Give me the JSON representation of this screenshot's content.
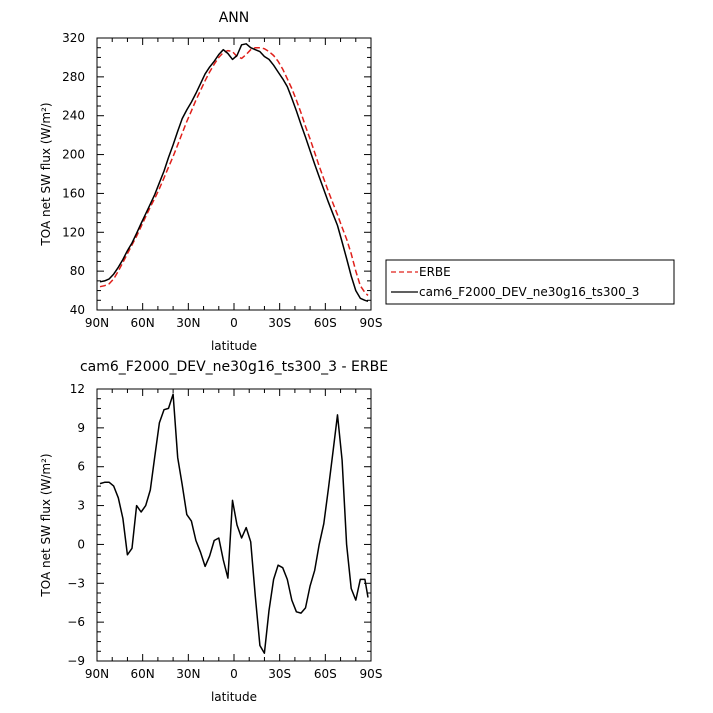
{
  "chart_data": [
    {
      "type": "line",
      "title": "ANN",
      "xlabel": "latitude",
      "ylabel": "TOA net SW flux (W/m²)",
      "xlim": [
        90,
        -90
      ],
      "ylim": [
        40,
        320
      ],
      "x_tick_values": [
        90,
        60,
        30,
        0,
        -30,
        -60,
        -90
      ],
      "x_tick_labels": [
        "90N",
        "60N",
        "30N",
        "0",
        "30S",
        "60S",
        "90S"
      ],
      "y_ticks": [
        40,
        80,
        120,
        160,
        200,
        240,
        280,
        320
      ],
      "legend": {
        "placement": "right"
      },
      "series": [
        {
          "name": "ERBE",
          "color": "#e0201b",
          "dash": "dashed",
          "x": [
            88,
            85,
            82,
            79,
            76,
            73,
            70,
            67,
            64,
            61,
            58,
            55,
            52,
            49,
            46,
            43,
            40,
            37,
            34,
            31,
            28,
            25,
            22,
            19,
            16,
            13,
            10,
            7,
            4,
            1,
            -2,
            -5,
            -8,
            -11,
            -14,
            -17,
            -20,
            -23,
            -26,
            -29,
            -32,
            -35,
            -38,
            -41,
            -44,
            -47,
            -50,
            -53,
            -56,
            -59,
            -62,
            -65,
            -68,
            -71,
            -74,
            -77,
            -80,
            -83,
            -86,
            -88
          ],
          "y": [
            64,
            65,
            67,
            72,
            80,
            89,
            98,
            107,
            116,
            126,
            136,
            146,
            155,
            165,
            176,
            187,
            198,
            210,
            222,
            234,
            245,
            256,
            266,
            276,
            285,
            293,
            300,
            305,
            307,
            306,
            301,
            299,
            303,
            308,
            310,
            310,
            309,
            306,
            302,
            296,
            288,
            278,
            268,
            256,
            243,
            229,
            216,
            202,
            188,
            175,
            162,
            150,
            138,
            125,
            113,
            98,
            80,
            65,
            58,
            55
          ]
        },
        {
          "name": "cam6_F2000_DEV_ne30g16_ts300_3",
          "color": "#000000",
          "dash": "solid",
          "x": [
            88,
            85,
            82,
            79,
            76,
            73,
            70,
            67,
            64,
            61,
            58,
            55,
            52,
            49,
            46,
            43,
            40,
            37,
            34,
            31,
            28,
            25,
            22,
            19,
            16,
            13,
            10,
            7,
            4,
            1,
            -2,
            -5,
            -8,
            -11,
            -14,
            -17,
            -20,
            -23,
            -26,
            -29,
            -32,
            -35,
            -38,
            -41,
            -44,
            -47,
            -50,
            -53,
            -56,
            -59,
            -62,
            -65,
            -68,
            -71,
            -74,
            -77,
            -80,
            -83,
            -86,
            -88
          ],
          "y": [
            69,
            70,
            72,
            77,
            84,
            92,
            101,
            109,
            119,
            129,
            139,
            149,
            159,
            171,
            183,
            197,
            210,
            224,
            237,
            246,
            254,
            263,
            273,
            283,
            290,
            296,
            303,
            308,
            304,
            298,
            302,
            313,
            314,
            310,
            308,
            306,
            301,
            298,
            292,
            285,
            278,
            270,
            258,
            245,
            231,
            218,
            204,
            190,
            177,
            164,
            151,
            139,
            127,
            110,
            93,
            75,
            60,
            52,
            50,
            49
          ]
        }
      ]
    },
    {
      "type": "line",
      "title": "cam6_F2000_DEV_ne30g16_ts300_3 - ERBE",
      "xlabel": "latitude",
      "ylabel": "TOA net SW flux (W/m²)",
      "xlim": [
        90,
        -90
      ],
      "ylim": [
        -9,
        12
      ],
      "x_tick_values": [
        90,
        60,
        30,
        0,
        -30,
        -60,
        -90
      ],
      "x_tick_labels": [
        "90N",
        "60N",
        "30N",
        "0",
        "30S",
        "60S",
        "90S"
      ],
      "y_ticks": [
        -9,
        -6,
        -3,
        0,
        3,
        6,
        9,
        12
      ],
      "series": [
        {
          "name": "",
          "color": "#000000",
          "dash": "solid",
          "x": [
            88,
            85,
            82,
            79,
            76,
            73,
            70,
            67,
            64,
            61,
            58,
            55,
            52,
            49,
            46,
            43,
            40,
            37,
            34,
            31,
            28,
            25,
            22,
            19,
            16,
            13,
            10,
            7,
            4,
            1,
            -2,
            -5,
            -8,
            -11,
            -14,
            -17,
            -20,
            -23,
            -26,
            -29,
            -32,
            -35,
            -38,
            -41,
            -44,
            -47,
            -50,
            -53,
            -56,
            -59,
            -62,
            -65,
            -68,
            -71,
            -74,
            -77,
            -80,
            -83,
            -86,
            -88
          ],
          "y": [
            4.7,
            4.8,
            4.8,
            4.5,
            3.6,
            2.0,
            -0.8,
            -0.3,
            3.0,
            2.5,
            3.0,
            4.2,
            6.8,
            9.4,
            10.4,
            10.5,
            11.6,
            6.7,
            4.6,
            2.3,
            1.8,
            0.3,
            -0.6,
            -1.7,
            -0.9,
            0.3,
            0.5,
            -1.2,
            -2.6,
            3.4,
            1.5,
            0.5,
            1.3,
            0.2,
            -4.0,
            -7.8,
            -8.4,
            -5.1,
            -2.7,
            -1.6,
            -1.8,
            -2.7,
            -4.3,
            -5.2,
            -5.3,
            -4.9,
            -3.2,
            -2.0,
            0.0,
            1.6,
            4.3,
            7.1,
            10.0,
            6.5,
            0.0,
            -3.4,
            -4.3,
            -2.7,
            -2.7,
            -4.1
          ]
        }
      ]
    }
  ]
}
